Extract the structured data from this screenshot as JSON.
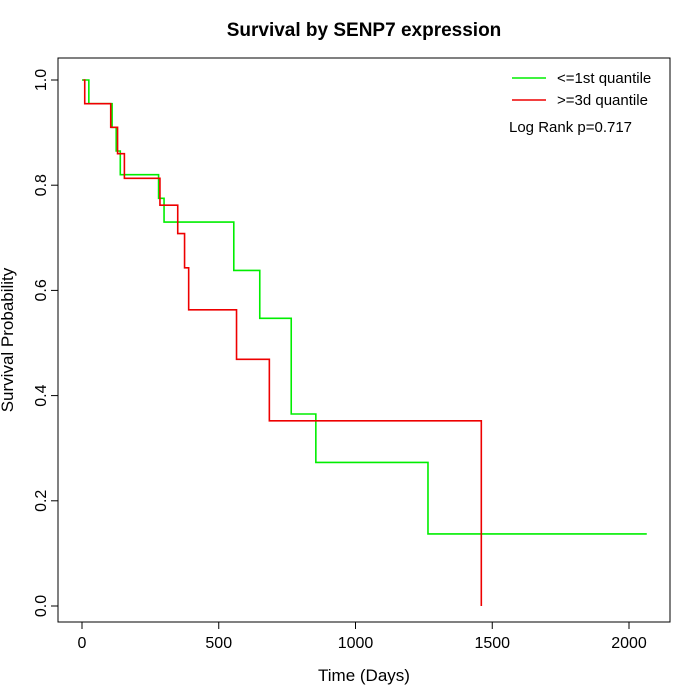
{
  "chart_data": {
    "type": "line",
    "subtype": "kaplan-meier-step",
    "title": "Survival by SENP7 expression",
    "xlabel": "Time (Days)",
    "ylabel": "Survival Probability",
    "xlim": [
      0,
      2070
    ],
    "ylim": [
      0,
      1
    ],
    "xticks": [
      0,
      500,
      1000,
      1500,
      2000
    ],
    "xtick_labels": [
      "0",
      "500",
      "1000",
      "1500",
      "2000"
    ],
    "yticks": [
      0,
      0.2,
      0.4,
      0.6,
      0.8,
      1.0
    ],
    "ytick_labels": [
      "0.0",
      "0.2",
      "0.4",
      "0.6",
      "0.8",
      "1.0"
    ],
    "grid": false,
    "legend_position": "top-right",
    "annotation": "Log Rank p=0.717",
    "series": [
      {
        "name": "<=1st quantile",
        "color": "#00ee00",
        "points": [
          [
            0,
            1.0
          ],
          [
            25,
            0.955
          ],
          [
            110,
            0.91
          ],
          [
            125,
            0.865
          ],
          [
            140,
            0.82
          ],
          [
            280,
            0.775
          ],
          [
            300,
            0.73
          ],
          [
            555,
            0.638
          ],
          [
            650,
            0.547
          ],
          [
            765,
            0.365
          ],
          [
            855,
            0.273
          ],
          [
            1265,
            0.137
          ],
          [
            2065,
            0.137
          ]
        ]
      },
      {
        "name": ">=3d quantile",
        "color": "#ee0000",
        "points": [
          [
            5,
            1.0
          ],
          [
            10,
            0.955
          ],
          [
            105,
            0.91
          ],
          [
            130,
            0.86
          ],
          [
            155,
            0.813
          ],
          [
            285,
            0.762
          ],
          [
            350,
            0.708
          ],
          [
            375,
            0.643
          ],
          [
            390,
            0.563
          ],
          [
            565,
            0.469
          ],
          [
            685,
            0.352
          ],
          [
            1460,
            0.352
          ],
          [
            1460,
            0.0
          ]
        ]
      }
    ]
  }
}
